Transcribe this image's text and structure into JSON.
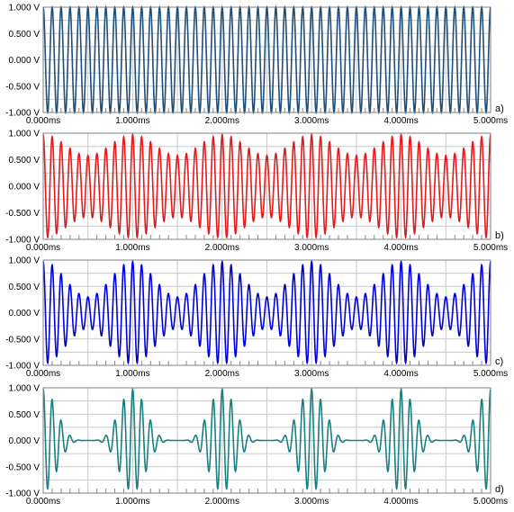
{
  "chart_data": [
    {
      "type": "line",
      "panel_label": "a)",
      "color": "#1F4E79",
      "grid": true,
      "xlim": [
        0,
        5
      ],
      "ylim": [
        -1,
        1
      ],
      "x_tick_labels": [
        "0.000ms",
        "1.000ms",
        "2.000ms",
        "3.000ms",
        "4.000ms",
        "5.000ms"
      ],
      "y_tick_labels": [
        "1.000 V",
        "0.500 V",
        "0.000 V",
        "-0.500 V",
        "-1.000 V"
      ],
      "series": [
        {
          "carrier_khz": 10,
          "amplitude_v": 1.0,
          "envelope": "constant"
        }
      ]
    },
    {
      "type": "line",
      "panel_label": "b)",
      "color": "#E41A1C",
      "grid": true,
      "xlim": [
        0,
        5
      ],
      "ylim": [
        -1,
        1
      ],
      "x_tick_labels": [
        "0.000ms",
        "1.000ms",
        "2.000ms",
        "3.000ms",
        "4.000ms",
        "5.000ms"
      ],
      "y_tick_labels": [
        "1.000 V",
        "0.500 V",
        "0.000 V",
        "-0.500 V",
        "-1.000 V"
      ],
      "series": [
        {
          "carrier_khz": 10,
          "mod_khz": 1,
          "peak_v": 0.97,
          "trough_v": 0.58,
          "envelope": "am"
        }
      ]
    },
    {
      "type": "line",
      "panel_label": "c)",
      "color": "#0000DD",
      "grid": true,
      "xlim": [
        0,
        5
      ],
      "ylim": [
        -1,
        1
      ],
      "x_tick_labels": [
        "0.000ms",
        "1.000ms",
        "2.000ms",
        "3.000ms",
        "4.000ms",
        "5.000ms"
      ],
      "y_tick_labels": [
        "1.000 V",
        "0.500 V",
        "0.000 V",
        "-0.500 V",
        "-1.000 V"
      ],
      "series": [
        {
          "carrier_khz": 10,
          "mod_khz": 1,
          "peak_v": 0.97,
          "trough_v": 0.3,
          "envelope": "am"
        }
      ]
    },
    {
      "type": "line",
      "panel_label": "d)",
      "color": "#1A8080",
      "grid": true,
      "xlim": [
        0,
        5
      ],
      "ylim": [
        -1,
        1
      ],
      "x_tick_labels": [
        "0.000ms",
        "1.000ms",
        "2.000ms",
        "3.000ms",
        "4.000ms",
        "5.000ms"
      ],
      "y_tick_labels": [
        "1.000 V",
        "0.500 V",
        "0.000 V",
        "-0.500 V",
        "-1.000 V"
      ],
      "series": [
        {
          "carrier_khz": 10,
          "mod_khz": 1,
          "peak_v": 0.97,
          "trough_v": 0.0,
          "envelope": "pulsed"
        }
      ]
    }
  ]
}
